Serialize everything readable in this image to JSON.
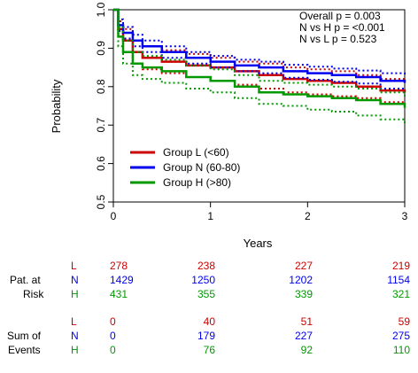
{
  "colors": {
    "L": "#cc0000",
    "N": "#0000ee",
    "H": "#009900"
  },
  "chart_data": {
    "type": "line",
    "xlabel": "Years",
    "ylabel": "Probability",
    "xlim": [
      0,
      3
    ],
    "ylim": [
      0.5,
      1.0
    ],
    "x_ticks": [
      "0",
      "1",
      "2",
      "3"
    ],
    "y_ticks": [
      "0.5",
      "0.6",
      "0.7",
      "0.8",
      "0.9",
      "1.0"
    ],
    "legend_position": "bottom-left",
    "annotations": [
      "Overall p = 0.003",
      "N vs H p = <0.001",
      "N vs L p = 0.523"
    ],
    "series": [
      {
        "name": "Group L (<60)",
        "key": "L",
        "x": [
          0,
          0.05,
          0.1,
          0.2,
          0.3,
          0.5,
          0.75,
          1.0,
          1.25,
          1.5,
          1.75,
          2.0,
          2.25,
          2.5,
          2.75,
          3.0
        ],
        "y": [
          1.0,
          0.95,
          0.92,
          0.89,
          0.875,
          0.865,
          0.855,
          0.85,
          0.84,
          0.83,
          0.82,
          0.815,
          0.81,
          0.8,
          0.79,
          0.785
        ],
        "ci_upper": [
          1.0,
          0.97,
          0.95,
          0.92,
          0.905,
          0.895,
          0.885,
          0.875,
          0.865,
          0.86,
          0.85,
          0.845,
          0.84,
          0.83,
          0.82,
          0.815
        ],
        "ci_lower": [
          1.0,
          0.93,
          0.89,
          0.86,
          0.845,
          0.835,
          0.825,
          0.815,
          0.805,
          0.795,
          0.785,
          0.78,
          0.775,
          0.77,
          0.76,
          0.755
        ]
      },
      {
        "name": "Group N (60-80)",
        "key": "N",
        "x": [
          0,
          0.05,
          0.1,
          0.2,
          0.3,
          0.5,
          0.75,
          1.0,
          1.25,
          1.5,
          1.75,
          2.0,
          2.25,
          2.5,
          2.75,
          3.0
        ],
        "y": [
          1.0,
          0.96,
          0.94,
          0.92,
          0.905,
          0.89,
          0.875,
          0.865,
          0.855,
          0.85,
          0.84,
          0.835,
          0.83,
          0.825,
          0.815,
          0.81
        ],
        "ci_upper": [
          1.0,
          0.975,
          0.955,
          0.935,
          0.92,
          0.905,
          0.89,
          0.88,
          0.87,
          0.865,
          0.857,
          0.852,
          0.847,
          0.842,
          0.835,
          0.83
        ],
        "ci_lower": [
          1.0,
          0.945,
          0.925,
          0.905,
          0.89,
          0.875,
          0.86,
          0.85,
          0.84,
          0.835,
          0.823,
          0.818,
          0.813,
          0.808,
          0.795,
          0.79
        ]
      },
      {
        "name": "Group H (>80)",
        "key": "H",
        "x": [
          0,
          0.05,
          0.1,
          0.2,
          0.3,
          0.5,
          0.75,
          1.0,
          1.25,
          1.5,
          1.75,
          2.0,
          2.25,
          2.5,
          2.75,
          3.0
        ],
        "y": [
          1.0,
          0.93,
          0.89,
          0.86,
          0.85,
          0.84,
          0.825,
          0.815,
          0.8,
          0.785,
          0.78,
          0.775,
          0.77,
          0.765,
          0.755,
          0.745
        ],
        "ci_upper": [
          1.0,
          0.955,
          0.92,
          0.89,
          0.88,
          0.87,
          0.855,
          0.845,
          0.83,
          0.815,
          0.81,
          0.805,
          0.8,
          0.795,
          0.785,
          0.775
        ],
        "ci_lower": [
          1.0,
          0.905,
          0.86,
          0.83,
          0.82,
          0.81,
          0.795,
          0.785,
          0.77,
          0.755,
          0.75,
          0.74,
          0.735,
          0.725,
          0.715,
          0.705
        ]
      }
    ]
  },
  "risk_table": {
    "label_line1": "Pat. at",
    "label_line2": "Risk",
    "rows": [
      {
        "key": "L",
        "values": [
          "278",
          "238",
          "227",
          "219"
        ]
      },
      {
        "key": "N",
        "values": [
          "1429",
          "1250",
          "1202",
          "1154"
        ]
      },
      {
        "key": "H",
        "values": [
          "431",
          "355",
          "339",
          "321"
        ]
      }
    ]
  },
  "events_table": {
    "label_line1": "Sum of",
    "label_line2": "Events",
    "rows": [
      {
        "key": "L",
        "values": [
          "0",
          "40",
          "51",
          "59"
        ]
      },
      {
        "key": "N",
        "values": [
          "0",
          "179",
          "227",
          "275"
        ]
      },
      {
        "key": "H",
        "values": [
          "0",
          "76",
          "92",
          "110"
        ]
      }
    ]
  }
}
